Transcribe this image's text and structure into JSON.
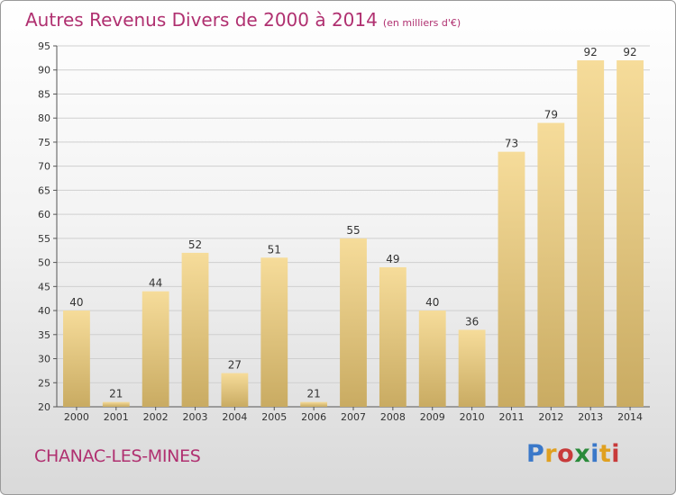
{
  "header": {
    "title": "Autres Revenus Divers de 2000 à 2014",
    "unit": "(en milliers d'€)"
  },
  "footer": {
    "commune": "CHANAC-LES-MINES",
    "brand": "Proxiti",
    "brand_colors": [
      "#3a78c9",
      "#e0a020",
      "#c83a3a",
      "#2a8a3a",
      "#3a78c9",
      "#e0a020",
      "#c83a3a"
    ]
  },
  "colors": {
    "text_accent": "#b03070",
    "bar_light": "#f6dc9a",
    "bar_dark": "#c9ab62",
    "grid": "#cfcfcf"
  },
  "chart_data": {
    "type": "bar",
    "title": "Autres Revenus Divers de 2000 à 2014",
    "subtitle": "(en milliers d'€)",
    "categories": [
      "2000",
      "2001",
      "2002",
      "2003",
      "2004",
      "2005",
      "2006",
      "2007",
      "2008",
      "2009",
      "2010",
      "2011",
      "2012",
      "2013",
      "2014"
    ],
    "values": [
      40,
      21,
      44,
      52,
      27,
      51,
      21,
      55,
      49,
      40,
      36,
      73,
      79,
      92,
      92
    ],
    "ylim": [
      20,
      95
    ],
    "yticks": [
      20,
      25,
      30,
      35,
      40,
      45,
      50,
      55,
      60,
      65,
      70,
      75,
      80,
      85,
      90,
      95
    ],
    "grid": true,
    "legend": "none"
  }
}
